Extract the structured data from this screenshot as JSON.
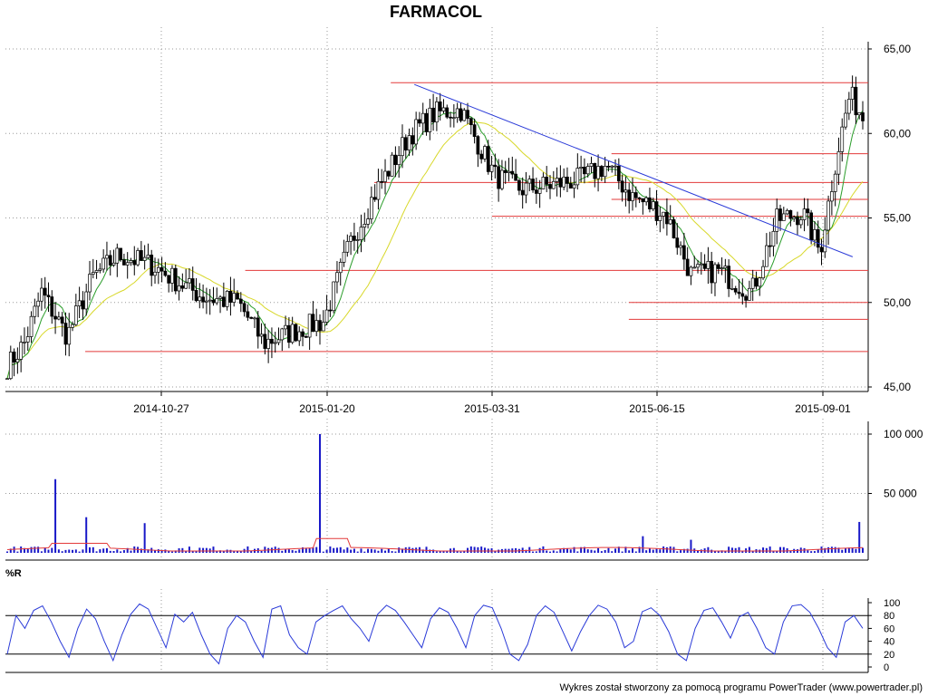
{
  "chart_data": [
    {
      "panel": "price",
      "type": "candlestick",
      "title": "FARMACOL",
      "x_dates": [
        "2014-10-27",
        "2015-01-20",
        "2015-03-31",
        "2015-06-15",
        "2015-09-01"
      ],
      "ylim": [
        45,
        65
      ],
      "y_ticks": [
        "45,00",
        "50,00",
        "55,00",
        "60,00",
        "65,00"
      ],
      "grid": true,
      "colors": {
        "candle": "#000000",
        "ma_short": "#2a9d2a",
        "ma_long": "#d8d82a",
        "support_resistance": "#e33a3a",
        "trendline": "#2a3ad8"
      },
      "resistance_lines": [
        {
          "value": 63.0,
          "from": "2015-02-16"
        },
        {
          "value": 58.8,
          "from": "2015-05-25"
        },
        {
          "value": 57.1,
          "from": "2015-02-09"
        },
        {
          "value": 56.1,
          "from": "2015-05-25"
        },
        {
          "value": 55.1,
          "from": "2015-03-31"
        },
        {
          "value": 51.9,
          "from": "2014-12-09"
        },
        {
          "value": 50.0,
          "from": "2015-06-02"
        },
        {
          "value": 49.0,
          "from": "2015-06-02"
        },
        {
          "value": 47.1,
          "from": "2014-09-18"
        }
      ],
      "trendline": {
        "start": {
          "date": "2015-02-26",
          "value": 62.9
        },
        "end": {
          "date": "2015-09-15",
          "value": 52.7
        }
      },
      "price_points": [
        {
          "x": 0.0,
          "close": 46.2
        },
        {
          "x": 0.02,
          "close": 47.6
        },
        {
          "x": 0.04,
          "close": 50.6
        },
        {
          "x": 0.07,
          "close": 48.0
        },
        {
          "x": 0.1,
          "close": 51.5
        },
        {
          "x": 0.13,
          "close": 52.8
        },
        {
          "x": 0.17,
          "close": 52.2
        },
        {
          "x": 0.2,
          "close": 51.2
        },
        {
          "x": 0.23,
          "close": 50.3
        },
        {
          "x": 0.27,
          "close": 50.0
        },
        {
          "x": 0.3,
          "close": 47.6
        },
        {
          "x": 0.33,
          "close": 48.2
        },
        {
          "x": 0.37,
          "close": 48.9
        },
        {
          "x": 0.4,
          "close": 53.4
        },
        {
          "x": 0.43,
          "close": 56.5
        },
        {
          "x": 0.47,
          "close": 59.9
        },
        {
          "x": 0.5,
          "close": 61.2
        },
        {
          "x": 0.53,
          "close": 61.4
        },
        {
          "x": 0.57,
          "close": 57.5
        },
        {
          "x": 0.6,
          "close": 56.7
        },
        {
          "x": 0.63,
          "close": 56.9
        },
        {
          "x": 0.67,
          "close": 57.3
        },
        {
          "x": 0.7,
          "close": 58.1
        },
        {
          "x": 0.73,
          "close": 56.3
        },
        {
          "x": 0.77,
          "close": 55.2
        },
        {
          "x": 0.8,
          "close": 51.6
        },
        {
          "x": 0.83,
          "close": 51.9
        },
        {
          "x": 0.87,
          "close": 50.6
        },
        {
          "x": 0.9,
          "close": 54.9
        },
        {
          "x": 0.93,
          "close": 55.3
        },
        {
          "x": 0.95,
          "close": 53.0
        },
        {
          "x": 0.97,
          "close": 58.8
        },
        {
          "x": 0.985,
          "close": 62.3
        },
        {
          "x": 1.0,
          "close": 61.0
        }
      ]
    },
    {
      "panel": "volume",
      "type": "bar",
      "ylim": [
        0,
        100000
      ],
      "y_ticks": [
        "50 000",
        "100 000"
      ],
      "colors": {
        "bar": "#1818c8",
        "average": "#e33a3a"
      },
      "spikes": [
        {
          "x": 0.058,
          "value": 62000
        },
        {
          "x": 0.094,
          "value": 30000
        },
        {
          "x": 0.16,
          "value": 25000
        },
        {
          "x": 0.365,
          "value": 100000
        },
        {
          "x": 0.742,
          "value": 14000
        },
        {
          "x": 0.8,
          "value": 11000
        },
        {
          "x": 0.995,
          "value": 26000
        }
      ],
      "average_level": 4500
    },
    {
      "panel": "oscillator",
      "type": "line",
      "title": "%R",
      "ylim": [
        0,
        100
      ],
      "y_ticks": [
        "0",
        "20",
        "40",
        "60",
        "80",
        "100"
      ],
      "reference_levels": [
        20,
        80
      ],
      "colors": {
        "line": "#2a3ad8",
        "reference": "#000000"
      },
      "values": [
        20,
        80,
        60,
        88,
        95,
        70,
        40,
        15,
        60,
        90,
        75,
        40,
        10,
        50,
        82,
        98,
        90,
        60,
        30,
        82,
        70,
        85,
        50,
        20,
        5,
        60,
        80,
        70,
        40,
        15,
        90,
        95,
        50,
        30,
        20,
        70,
        80,
        88,
        95,
        75,
        60,
        40,
        82,
        96,
        88,
        70,
        50,
        30,
        75,
        92,
        85,
        60,
        30,
        80,
        96,
        92,
        60,
        20,
        10,
        35,
        80,
        95,
        85,
        55,
        25,
        55,
        80,
        96,
        90,
        70,
        30,
        40,
        86,
        92,
        80,
        55,
        20,
        10,
        60,
        88,
        92,
        70,
        45,
        78,
        85,
        60,
        30,
        20,
        70,
        95,
        97,
        85,
        60,
        30,
        15,
        70,
        80,
        60
      ]
    }
  ],
  "footer": {
    "credit": "Wykres został stworzony za pomocą programu PowerTrader (www.powertrader.pl)"
  }
}
